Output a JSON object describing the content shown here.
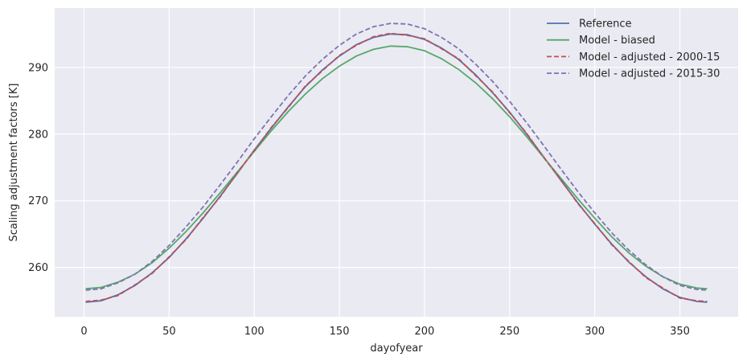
{
  "chart_data": {
    "type": "line",
    "x_label": "dayofyear",
    "y_label": "Scaling adjustment factors [K]",
    "x": [
      1,
      10,
      20,
      30,
      40,
      50,
      60,
      70,
      80,
      90,
      100,
      110,
      120,
      130,
      140,
      150,
      160,
      170,
      180,
      190,
      200,
      210,
      220,
      230,
      240,
      250,
      260,
      270,
      280,
      290,
      300,
      310,
      320,
      330,
      340,
      350,
      360,
      366
    ],
    "series": [
      {
        "name": "Reference",
        "color": "#4c72b0",
        "linestyle": "solid",
        "values": [
          254.8,
          255.0,
          255.9,
          257.3,
          259.2,
          261.5,
          264.3,
          267.4,
          270.7,
          274.1,
          277.6,
          280.9,
          284.1,
          287.1,
          289.6,
          291.7,
          293.4,
          294.5,
          295.0,
          294.9,
          294.2,
          292.9,
          291.2,
          288.9,
          286.2,
          283.3,
          280.0,
          276.6,
          273.1,
          269.7,
          266.5,
          263.5,
          260.8,
          258.6,
          256.8,
          255.5,
          254.9,
          254.8
        ]
      },
      {
        "name": "Model - biased",
        "color": "#55a868",
        "linestyle": "solid",
        "values": [
          256.8,
          257.0,
          257.8,
          259.0,
          260.7,
          262.9,
          265.4,
          268.2,
          271.2,
          274.3,
          277.4,
          280.5,
          283.4,
          286.0,
          288.3,
          290.2,
          291.7,
          292.7,
          293.2,
          293.1,
          292.5,
          291.3,
          289.7,
          287.7,
          285.3,
          282.6,
          279.6,
          276.5,
          273.4,
          270.3,
          267.4,
          264.6,
          262.2,
          260.2,
          258.6,
          257.5,
          256.9,
          256.8
        ]
      },
      {
        "name": "Model - adjusted - 2000-15",
        "color": "#c44e52",
        "linestyle": "dashed",
        "values": [
          254.9,
          255.1,
          255.8,
          257.4,
          259.1,
          261.6,
          264.2,
          267.5,
          270.6,
          274.2,
          277.5,
          281.0,
          284.0,
          287.2,
          289.5,
          291.8,
          293.3,
          294.6,
          295.1,
          294.8,
          294.3,
          292.8,
          291.3,
          288.8,
          286.3,
          283.2,
          280.1,
          276.5,
          273.2,
          269.6,
          266.6,
          263.4,
          260.9,
          258.5,
          256.9,
          255.4,
          255.0,
          254.9
        ]
      },
      {
        "name": "Model - adjusted - 2015-30",
        "color": "#8172b2",
        "linestyle": "dashed",
        "values": [
          256.6,
          256.8,
          257.7,
          259.0,
          260.9,
          263.3,
          266.1,
          269.1,
          272.4,
          275.8,
          279.3,
          282.6,
          285.8,
          288.7,
          291.2,
          293.3,
          295.0,
          296.1,
          296.6,
          296.5,
          295.8,
          294.5,
          292.8,
          290.5,
          287.9,
          284.9,
          281.7,
          278.3,
          274.8,
          271.4,
          268.2,
          265.2,
          262.6,
          260.4,
          258.6,
          257.3,
          256.7,
          256.6
        ]
      }
    ],
    "xlim": [
      -17.25,
      384.25
    ],
    "ylim": [
      252.6,
      298.9
    ],
    "xticks": [
      0,
      50,
      100,
      150,
      200,
      250,
      300,
      350
    ],
    "yticks": [
      260,
      270,
      280,
      290
    ],
    "grid": true,
    "legend": "upper right"
  }
}
